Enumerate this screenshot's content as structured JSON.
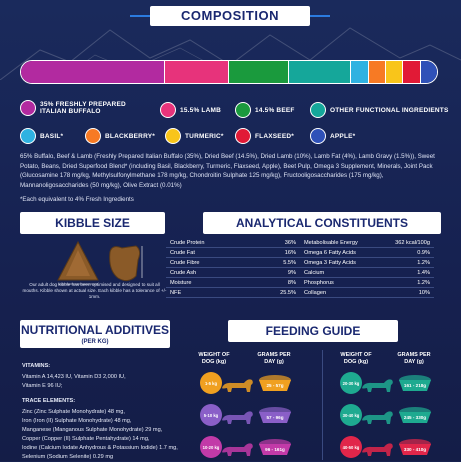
{
  "composition": {
    "title": "COMPOSITION",
    "segments": [
      {
        "color": "#b22aa0",
        "pct": 35
      },
      {
        "color": "#e7337b",
        "pct": 15.5
      },
      {
        "color": "#1a9a3d",
        "pct": 14.5
      },
      {
        "color": "#15a79a",
        "pct": 15
      },
      {
        "color": "#2fb2e1",
        "pct": 4
      },
      {
        "color": "#f77a24",
        "pct": 4
      },
      {
        "color": "#f9c51a",
        "pct": 4
      },
      {
        "color": "#e11a36",
        "pct": 4
      },
      {
        "color": "#2f51b8",
        "pct": 4
      }
    ],
    "legend": [
      {
        "label": "35% FRESHLY PREPARED ITALIAN BUFFALO",
        "color": "#b22aa0"
      },
      {
        "label": "15.5% LAMB",
        "color": "#e7337b"
      },
      {
        "label": "14.5% BEEF",
        "color": "#1a9a3d"
      },
      {
        "label": "OTHER FUNCTIONAL INGREDIENTS",
        "color": "#15a79a"
      },
      {
        "label": "BASIL*",
        "color": "#2fb2e1"
      },
      {
        "label": "BLACKBERRY*",
        "color": "#f77a24"
      },
      {
        "label": "TURMERIC*",
        "color": "#f9c51a"
      },
      {
        "label": "FLAXSEED*",
        "color": "#e11a36"
      },
      {
        "label": "APPLE*",
        "color": "#2f51b8"
      }
    ],
    "ingredients": "65% Buffalo, Beef & Lamb (Freshly Prepared Italian Buffalo (35%), Dried Beef (14.5%), Dried Lamb (10%), Lamb Fat (4%), Lamb Gravy (1.5%)), Sweet Potato, Beans, Dried Superfood Blend* (including Basil, Blackberry, Turmeric, Flaxseed, Apple), Beet Pulp, Omega 3 Supplement, Minerals, Joint Pack (Glucosamine 178 mg/kg, Methylsulfonylmethane 178 mg/kg, Chondroitin Sulphate 125 mg/kg), Fructooligosaccharides (175 mg/kg), Mannanoligosaccharides (50 mg/kg), Olive Extract (0.01%)",
    "equivalent_note": "*Each equivalent to 4% Fresh Ingredients"
  },
  "kibble": {
    "title": "KIBBLE SIZE",
    "note": "Our adult dog kibble has been optimised and designed to suit all mouths. Kibble shown at actual size. Each kibble has a tolerance of +/- 1mm.",
    "dim_label": "Mm"
  },
  "analytical": {
    "title": "ANALYTICAL CONSTITUENTS",
    "rows": [
      [
        {
          "k": "Crude Protein",
          "v": "36%"
        },
        {
          "k": "Metabolisable Energy",
          "v": "362 kcal/100g"
        }
      ],
      [
        {
          "k": "Crude Fat",
          "v": "16%"
        },
        {
          "k": "Omega 6 Fatty Acids",
          "v": "0.9%"
        }
      ],
      [
        {
          "k": "Crude Fibre",
          "v": "5.5%"
        },
        {
          "k": "Omega 3 Fatty Acids",
          "v": "1.2%"
        }
      ],
      [
        {
          "k": "Crude Ash",
          "v": "9%"
        },
        {
          "k": "Calcium",
          "v": "1.4%"
        }
      ],
      [
        {
          "k": "Moisture",
          "v": "8%"
        },
        {
          "k": "Phosphorus",
          "v": "1.2%"
        }
      ],
      [
        {
          "k": "NFE",
          "v": "25.5%"
        },
        {
          "k": "Collagen",
          "v": "10%"
        }
      ]
    ]
  },
  "nutritional": {
    "title": "NUTRITIONAL ADDITIVES",
    "subtitle": "(PER KG)",
    "vitamins_head": "VITAMINS:",
    "vitamins": [
      "Vitamin A 14,423 IU, Vitamin D3 2,000 IU,",
      "Vitamin E 96 IU;"
    ],
    "trace_head": "TRACE ELEMENTS:",
    "trace": [
      "Zinc (Zinc Sulphate Monohydrate) 48 mg,",
      "Iron (Iron (II) Sulphate Monohydrate) 48 mg,",
      "Manganese (Manganous Sulphate Monohydrate) 29 mg,",
      "Copper (Copper (II) Sulphate Pentahydrate) 14 mg,",
      "Iodine (Calcium Iodate Anhydrous & Potassium Iodide) 1.7 mg,",
      "Selenium (Sodium Selenite) 0.29 mg"
    ]
  },
  "feeding": {
    "title": "FEEDING GUIDE",
    "col_weight": "WEIGHT OF DOG (kg)",
    "col_grams": "GRAMS PER DAY (g)",
    "left": [
      {
        "weight": "1-5 kg",
        "grams": "25 - 57g",
        "color": "#f0a020"
      },
      {
        "weight": "5-10 kg",
        "grams": "57 - 96g",
        "color": "#8a5fc8"
      },
      {
        "weight": "10-20 kg",
        "grams": "96 - 161g",
        "color": "#c23aa8"
      }
    ],
    "right": [
      {
        "weight": "20-30 kg",
        "grams": "161 - 218g",
        "color": "#1eaa90"
      },
      {
        "weight": "30-40 kg",
        "grams": "245 - 330g",
        "color": "#1eaa90"
      },
      {
        "weight": "40-50 kg",
        "grams": "330 - 410g",
        "color": "#e1264a"
      }
    ]
  }
}
